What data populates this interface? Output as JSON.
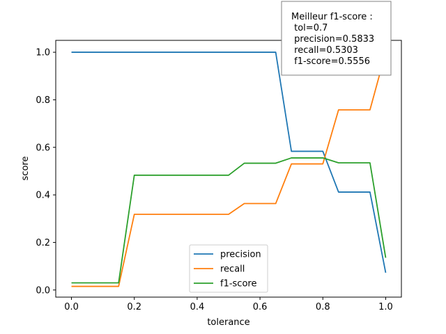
{
  "chart_data": {
    "type": "line",
    "xlabel": "tolerance",
    "ylabel": "score",
    "xlim": [
      -0.05,
      1.05
    ],
    "ylim": [
      -0.03,
      1.05
    ],
    "xticks": [
      "0.0",
      "0.2",
      "0.4",
      "0.6",
      "0.8",
      "1.0"
    ],
    "yticks": [
      "0.0",
      "0.2",
      "0.4",
      "0.6",
      "0.8",
      "1.0"
    ],
    "grid": false,
    "legend_position": "bottom-center",
    "x": [
      0.0,
      0.05,
      0.1,
      0.15,
      0.2,
      0.25,
      0.3,
      0.35,
      0.4,
      0.45,
      0.5,
      0.55,
      0.6,
      0.65,
      0.7,
      0.75,
      0.8,
      0.85,
      0.9,
      0.95,
      1.0
    ],
    "series": [
      {
        "name": "precision",
        "color": "#1f77b4",
        "values": [
          1.0,
          1.0,
          1.0,
          1.0,
          1.0,
          1.0,
          1.0,
          1.0,
          1.0,
          1.0,
          1.0,
          1.0,
          1.0,
          1.0,
          0.5833,
          0.5833,
          0.5833,
          0.4118,
          0.4118,
          0.4118,
          0.0727
        ]
      },
      {
        "name": "recall",
        "color": "#ff7f0e",
        "values": [
          0.0152,
          0.0152,
          0.0152,
          0.0152,
          0.3182,
          0.3182,
          0.3182,
          0.3182,
          0.3182,
          0.3182,
          0.3182,
          0.3636,
          0.3636,
          0.3636,
          0.5303,
          0.5303,
          0.5303,
          0.7576,
          0.7576,
          0.7576,
          1.0
        ]
      },
      {
        "name": "f1-score",
        "color": "#2ca02c",
        "values": [
          0.0299,
          0.0299,
          0.0299,
          0.0299,
          0.4828,
          0.4828,
          0.4828,
          0.4828,
          0.4828,
          0.4828,
          0.4828,
          0.5333,
          0.5333,
          0.5333,
          0.5556,
          0.5556,
          0.5556,
          0.5348,
          0.5348,
          0.5348,
          0.1356
        ]
      }
    ],
    "annotation": [
      "Meilleur f1-score :",
      " tol=0.7",
      " precision=0.5833",
      " recall=0.5303",
      " f1-score=0.5556"
    ]
  }
}
